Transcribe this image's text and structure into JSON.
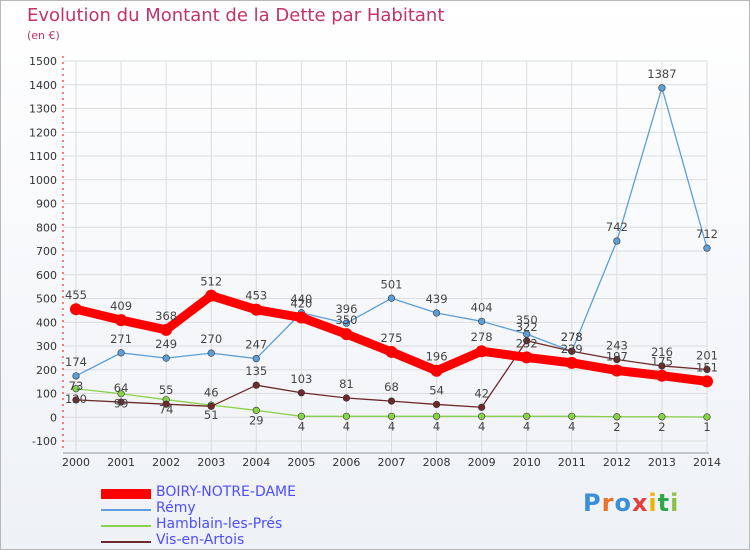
{
  "title": "Evolution du Montant de la Dette par Habitant",
  "subtitle": "(en €)",
  "logo": {
    "text": "Proxiti",
    "colors": [
      "#3a8fd8",
      "#e8732a",
      "#3a8fd8",
      "#e24040",
      "#f0b400",
      "#2ea84a",
      "#8bc34a"
    ]
  },
  "chart_data": {
    "type": "line",
    "x": [
      "2000",
      "2001",
      "2002",
      "2003",
      "2004",
      "2005",
      "2006",
      "2007",
      "2008",
      "2009",
      "2010",
      "2011",
      "2012",
      "2013",
      "2014"
    ],
    "ylim": [
      -100,
      1500
    ],
    "yticks": [
      "-100",
      "0",
      "100",
      "200",
      "300",
      "400",
      "500",
      "600",
      "700",
      "800",
      "900",
      "1000",
      "1100",
      "1200",
      "1300",
      "1400",
      "1500"
    ],
    "legend_position": "bottom-left",
    "series": [
      {
        "name": "BOIRY-NOTRE-DAME",
        "color": "#ff0000",
        "values": [
          455,
          409,
          368,
          512,
          453,
          420,
          350,
          275,
          196,
          278,
          252,
          229,
          197,
          175,
          151
        ],
        "labels": [
          "455",
          "409",
          "368",
          "512",
          "453",
          "420",
          "350",
          "275",
          "196",
          "278",
          "252",
          "229",
          "197",
          "175",
          "151"
        ]
      },
      {
        "name": "Rémy",
        "color": "#5c9fd6",
        "values": [
          174,
          271,
          249,
          270,
          247,
          440,
          396,
          501,
          439,
          404,
          350,
          278,
          742,
          1387,
          712
        ],
        "labels": [
          "174",
          "271",
          "249",
          "270",
          "247",
          "440",
          "396",
          "501",
          "439",
          "404",
          "350",
          "278",
          "742",
          "1387",
          "712"
        ]
      },
      {
        "name": "Hamblain-les-Prés",
        "color": "#88d24a",
        "values": [
          120,
          99,
          74,
          51,
          29,
          4,
          4,
          4,
          4,
          4,
          4,
          4,
          2,
          2,
          1
        ],
        "labels": [
          "120",
          "99",
          "74",
          "51",
          "29",
          "4",
          "4",
          "4",
          "4",
          "4",
          "4",
          "4",
          "2",
          "2",
          "1"
        ]
      },
      {
        "name": "Vis-en-Artois",
        "color": "#6e2a2a",
        "values": [
          73,
          64,
          55,
          46,
          135,
          103,
          81,
          68,
          54,
          42,
          322,
          278,
          243,
          216,
          201
        ],
        "labels": [
          "73",
          "64",
          "55",
          "46",
          "135",
          "103",
          "81",
          "68",
          "54",
          "42",
          "322",
          "278",
          "243",
          "216",
          "201"
        ]
      }
    ]
  }
}
